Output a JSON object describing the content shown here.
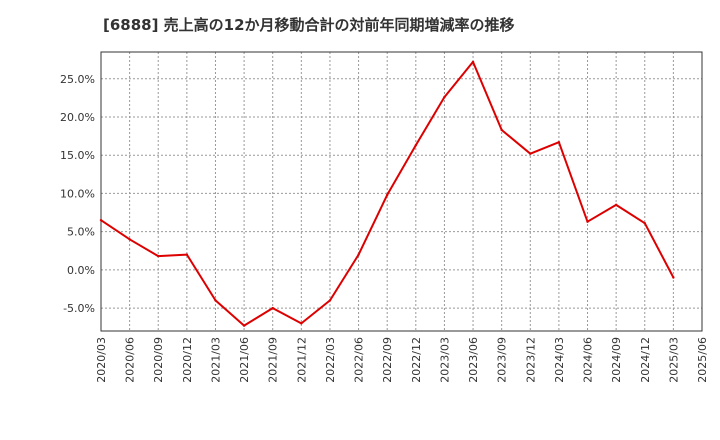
{
  "chart_data": {
    "type": "line",
    "title": "[6888]  売上高の12か月移動合計の対前年同期増減率の推移",
    "xlabel": "",
    "ylabel": "",
    "categories": [
      "2020/03",
      "2020/06",
      "2020/09",
      "2020/12",
      "2021/03",
      "2021/06",
      "2021/09",
      "2021/12",
      "2022/03",
      "2022/06",
      "2022/09",
      "2022/12",
      "2023/03",
      "2023/06",
      "2023/09",
      "2023/12",
      "2024/03",
      "2024/06",
      "2024/09",
      "2024/12",
      "2025/03",
      "2025/06"
    ],
    "series": [
      {
        "name": "増減率",
        "color": "#dd0000",
        "values": [
          6.5,
          4.0,
          1.8,
          2.0,
          -4.0,
          -7.3,
          -5.0,
          -7.0,
          -4.0,
          2.0,
          9.8,
          16.3,
          22.6,
          27.2,
          18.3,
          15.2,
          16.7,
          6.3,
          8.5,
          6.1,
          -1.0,
          null
        ]
      }
    ],
    "ylim": [
      -8.0,
      28.5
    ],
    "yticks": [
      -5,
      0,
      5,
      10,
      15,
      20,
      25
    ],
    "ytick_labels": [
      "-5.0%",
      "0.0%",
      "5.0%",
      "10.0%",
      "15.0%",
      "20.0%",
      "25.0%"
    ],
    "grid": true,
    "legend": "none"
  }
}
